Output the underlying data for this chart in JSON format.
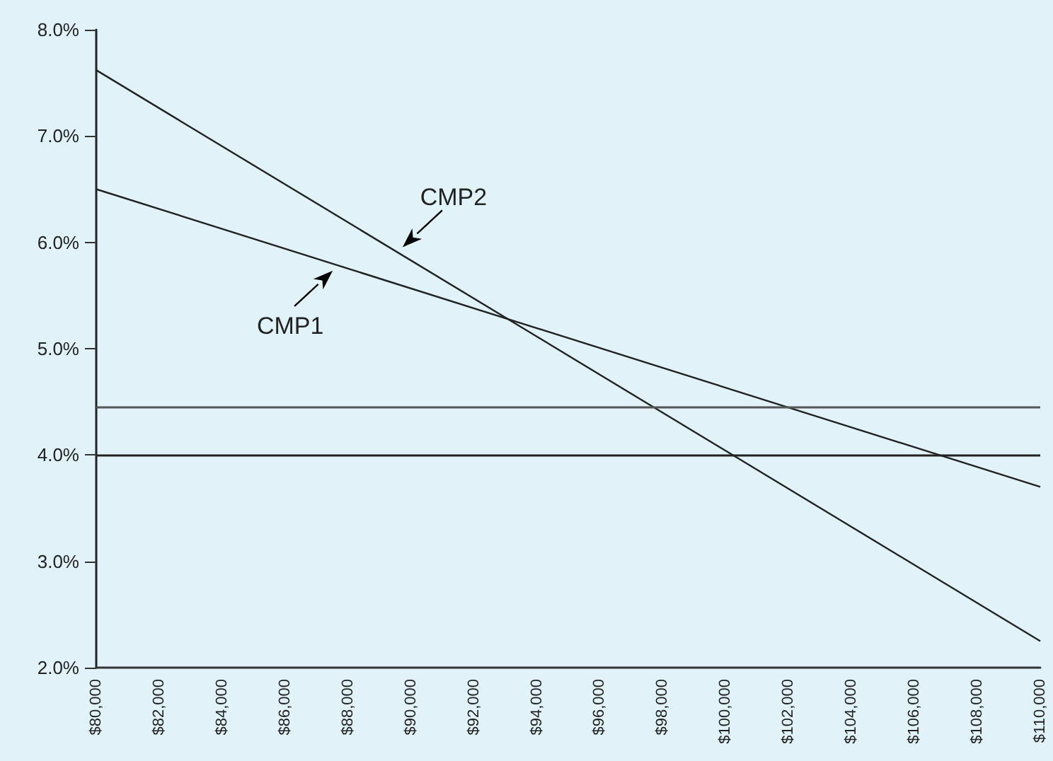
{
  "chart_data": {
    "type": "line",
    "x": [
      80000,
      110000
    ],
    "series": [
      {
        "name": "CMP1",
        "color": "#222222",
        "values": [
          6.5,
          3.7
        ]
      },
      {
        "name": "CMP2",
        "color": "#222222",
        "values": [
          7.62,
          2.25
        ]
      }
    ],
    "xlim": [
      80000,
      110000
    ],
    "xticks": [
      {
        "value": 80000,
        "label": "$80,000"
      },
      {
        "value": 82000,
        "label": "$82,000"
      },
      {
        "value": 84000,
        "label": "$84,000"
      },
      {
        "value": 86000,
        "label": "$86,000"
      },
      {
        "value": 88000,
        "label": "$88,000"
      },
      {
        "value": 90000,
        "label": "$90,000"
      },
      {
        "value": 92000,
        "label": "$92,000"
      },
      {
        "value": 94000,
        "label": "$94,000"
      },
      {
        "value": 96000,
        "label": "$96,000"
      },
      {
        "value": 98000,
        "label": "$98,000"
      },
      {
        "value": 100000,
        "label": "$100,000"
      },
      {
        "value": 102000,
        "label": "$102,000"
      },
      {
        "value": 104000,
        "label": "$104,000"
      },
      {
        "value": 106000,
        "label": "$106,000"
      },
      {
        "value": 108000,
        "label": "$108,000"
      },
      {
        "value": 110000,
        "label": "$110,000"
      }
    ],
    "ylim": [
      2,
      8
    ],
    "yticks": [
      {
        "value": 2,
        "label": "2.0%"
      },
      {
        "value": 3,
        "label": "3.0%"
      },
      {
        "value": 4,
        "label": "4.0%"
      },
      {
        "value": 5,
        "label": "5.0%"
      },
      {
        "value": 6,
        "label": "6.0%"
      },
      {
        "value": 7,
        "label": "7.0%"
      },
      {
        "value": 8,
        "label": "8.0%"
      }
    ],
    "ref_lines": [
      {
        "axis": "y",
        "value": 4.45,
        "color": "#555555"
      },
      {
        "axis": "y",
        "value": 4.0,
        "color": "#222222"
      }
    ],
    "grid": false,
    "legend": false,
    "marker": "none",
    "line_style": "solid"
  }
}
